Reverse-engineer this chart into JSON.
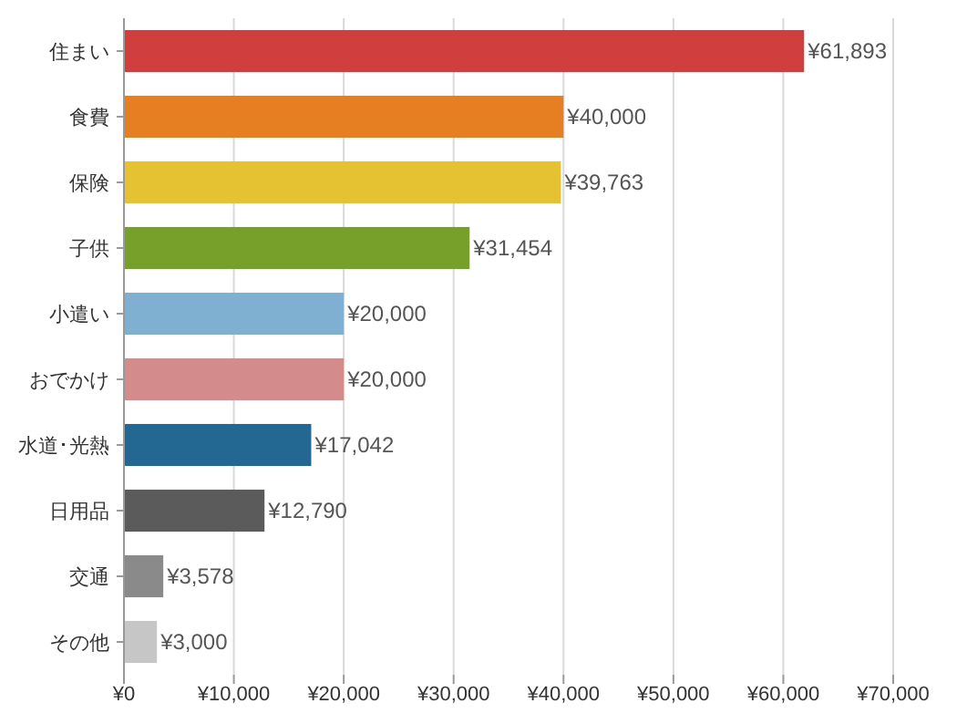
{
  "chart_data": {
    "type": "bar",
    "orientation": "horizontal",
    "categories": [
      "住まい",
      "食費",
      "保険",
      "子供",
      "小遣い",
      "おでかけ",
      "水道･光熱",
      "日用品",
      "交通",
      "その他"
    ],
    "values": [
      61893,
      40000,
      39763,
      31454,
      20000,
      20000,
      17042,
      12790,
      3578,
      3000
    ],
    "colors": [
      "#d03e3e",
      "#e67e22",
      "#e4c232",
      "#76a02a",
      "#7fb0d1",
      "#d48b8b",
      "#236892",
      "#5b5b5b",
      "#8a8a8a",
      "#c6c6c6"
    ],
    "value_labels": [
      "¥61,893",
      "¥40,000",
      "¥39,763",
      "¥31,454",
      "¥20,000",
      "¥20,000",
      "¥17,042",
      "¥12,790",
      "¥3,578",
      "¥3,000"
    ],
    "xlim": [
      0,
      70000
    ],
    "xticks": [
      {
        "value": 0,
        "label": "¥0"
      },
      {
        "value": 10000,
        "label": "¥10,000"
      },
      {
        "value": 20000,
        "label": "¥20,000"
      },
      {
        "value": 30000,
        "label": "¥30,000"
      },
      {
        "value": 40000,
        "label": "¥40,000"
      },
      {
        "value": 50000,
        "label": "¥50,000"
      },
      {
        "value": 60000,
        "label": "¥60,000"
      },
      {
        "value": 70000,
        "label": "¥70,000"
      }
    ],
    "grid": "x"
  }
}
